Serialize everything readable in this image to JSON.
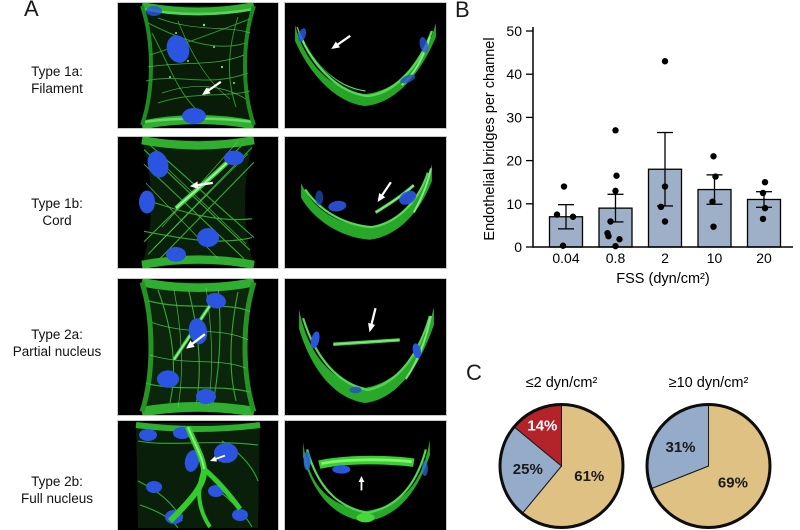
{
  "figure": {
    "panel_letters": {
      "a": "A",
      "b": "B",
      "c": "C"
    },
    "panel_a_rows": [
      {
        "line1": "Type 1a:",
        "line2": "Filament"
      },
      {
        "line1": "Type 1b:",
        "line2": "Cord"
      },
      {
        "line1": "Type 2a:",
        "line2": "Partial nucleus"
      },
      {
        "line1": "Type 2b:",
        "line2": "Full nucleus"
      }
    ],
    "micrograph_colors": {
      "actin_green": "#2fae2f",
      "nucleus_blue": "#2b55e0",
      "background": "#000000",
      "arrow": "#ffffff"
    }
  },
  "chart_data": [
    {
      "type": "bar",
      "panel": "B",
      "title": "",
      "ylabel": "Endothelial bridges per channel",
      "xlabel": "FSS (dyn/cm²)",
      "categories": [
        "0.04",
        "0.8",
        "2",
        "10",
        "20"
      ],
      "values": [
        7,
        9,
        18,
        13.3,
        11
      ],
      "errors": [
        2.8,
        3.2,
        8.5,
        3.4,
        1.8
      ],
      "points": [
        [
          14,
          7.5,
          7,
          0.3
        ],
        [
          27,
          16.5,
          13,
          5.9,
          3.2,
          2.5,
          1.8,
          0.2
        ],
        [
          43,
          14,
          9.3,
          5.9
        ],
        [
          21,
          16.3,
          10.5,
          4.7
        ],
        [
          15,
          12.5,
          9,
          6.5
        ]
      ],
      "point_dx": [
        [
          -2,
          -9,
          7,
          -3
        ],
        [
          0,
          1,
          0,
          -5,
          -8,
          -7,
          4,
          0
        ],
        [
          0,
          0,
          -4,
          0
        ],
        [
          -1,
          1,
          -2,
          -1
        ],
        [
          1,
          -1,
          1,
          -1
        ]
      ],
      "ylim": [
        0,
        50
      ],
      "ytick_step": 10,
      "grid": false,
      "legend": false,
      "bar_color": "#9db0c8",
      "bar_edge": "#000000"
    },
    {
      "type": "pie",
      "panel": "C",
      "title": "≤2 dyn/cm²",
      "slices": [
        {
          "label": "61%",
          "value": 61,
          "color": "#dfc184",
          "label_color": "#1a1a1a"
        },
        {
          "label": "25%",
          "value": 25,
          "color": "#94abca",
          "label_color": "#1a1a1a"
        },
        {
          "label": "14%",
          "value": 14,
          "color": "#b4232a",
          "label_color": "#ffffff"
        }
      ]
    },
    {
      "type": "pie",
      "panel": "C",
      "title": "≥10 dyn/cm²",
      "slices": [
        {
          "label": "69%",
          "value": 69,
          "color": "#dfc184",
          "label_color": "#1a1a1a"
        },
        {
          "label": "31%",
          "value": 31,
          "color": "#94abca",
          "label_color": "#1a1a1a"
        }
      ]
    }
  ]
}
